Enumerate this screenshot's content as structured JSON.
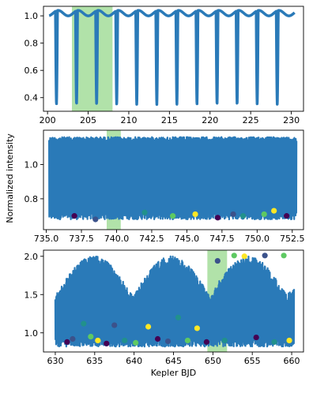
{
  "figure": {
    "shared_ylabel": "Normalized intensity",
    "colors": {
      "series": "#2a7ab8",
      "band": "#a8dfa0",
      "points": [
        "#440154",
        "#3b528b",
        "#21918c",
        "#5ec962",
        "#fde725"
      ]
    }
  },
  "chart_data": [
    {
      "type": "line",
      "xlabel": "",
      "ylabel": "",
      "xlim": [
        199.5,
        231.5
      ],
      "ylim": [
        0.3,
        1.07
      ],
      "xticks": [
        200,
        205,
        210,
        215,
        220,
        225,
        230
      ],
      "xtick_labels": [
        "200",
        "205",
        "210",
        "215",
        "220",
        "225",
        "230"
      ],
      "yticks": [
        0.4,
        0.6,
        0.8,
        1.0
      ],
      "ytick_labels": [
        "0.4",
        "0.6",
        "0.8",
        "1.0"
      ],
      "series": [
        {
          "x_range": [
            200.2,
            230.4
          ],
          "period": 2.47,
          "first_dip": 201.1,
          "max": 1.02,
          "min": 0.35
        }
      ],
      "highlight_band": {
        "x": [
          203.0,
          208.0
        ]
      },
      "grid": false
    },
    {
      "type": "line",
      "xlabel": "",
      "ylabel": "",
      "xlim": [
        734.8,
        753.3
      ],
      "ylim": [
        0.62,
        1.2
      ],
      "xticks": [
        735.0,
        737.5,
        740.0,
        742.5,
        745.0,
        747.5,
        750.0,
        752.5
      ],
      "xtick_labels": [
        "735.0",
        "737.5",
        "740.0",
        "742.5",
        "745.0",
        "747.5",
        "750.0",
        "752.5"
      ],
      "yticks": [
        0.8,
        1.0
      ],
      "ytick_labels": [
        "0.8",
        "1.0"
      ],
      "series": [
        {
          "x_range": [
            735.2,
            752.8
          ],
          "period": 0.088,
          "max": 1.16,
          "min": 0.68
        }
      ],
      "highlight_band": {
        "x": [
          739.3,
          740.3
        ]
      },
      "points": [
        {
          "x": 737.0,
          "y": 0.7
        },
        {
          "x": 738.5,
          "y": 0.68
        },
        {
          "x": 742.0,
          "y": 0.72
        },
        {
          "x": 744.0,
          "y": 0.7
        },
        {
          "x": 745.6,
          "y": 0.71
        },
        {
          "x": 747.2,
          "y": 0.69
        },
        {
          "x": 748.3,
          "y": 0.71
        },
        {
          "x": 749.0,
          "y": 0.7
        },
        {
          "x": 750.5,
          "y": 0.71
        },
        {
          "x": 751.2,
          "y": 0.73
        },
        {
          "x": 752.1,
          "y": 0.7
        }
      ],
      "grid": false
    },
    {
      "type": "line",
      "xlabel": "Kepler BJD",
      "ylabel": "",
      "xlim": [
        628.5,
        661.5
      ],
      "ylim": [
        0.75,
        2.08
      ],
      "xticks": [
        630,
        635,
        640,
        645,
        650,
        655,
        660
      ],
      "xtick_labels": [
        "630",
        "635",
        "640",
        "645",
        "650",
        "655",
        "660"
      ],
      "yticks": [
        1.0,
        1.5,
        2.0
      ],
      "ytick_labels": [
        "1.0",
        "1.5",
        "2.0"
      ],
      "series": [
        {
          "x_range": [
            630.0,
            660.3
          ],
          "period": 0.57,
          "max": 2.0,
          "min": 0.82
        }
      ],
      "highlight_band": {
        "x": [
          649.3,
          651.8
        ]
      },
      "points": [
        {
          "x": 631.5,
          "y": 0.88
        },
        {
          "x": 632.2,
          "y": 0.92
        },
        {
          "x": 633.6,
          "y": 1.12
        },
        {
          "x": 634.5,
          "y": 0.95
        },
        {
          "x": 635.4,
          "y": 0.9
        },
        {
          "x": 636.5,
          "y": 0.86
        },
        {
          "x": 637.5,
          "y": 1.1
        },
        {
          "x": 638.8,
          "y": 0.9
        },
        {
          "x": 640.2,
          "y": 0.87
        },
        {
          "x": 641.8,
          "y": 1.08
        },
        {
          "x": 643.0,
          "y": 0.92
        },
        {
          "x": 644.3,
          "y": 0.89
        },
        {
          "x": 645.6,
          "y": 1.2
        },
        {
          "x": 646.8,
          "y": 0.9
        },
        {
          "x": 648.0,
          "y": 1.06
        },
        {
          "x": 649.2,
          "y": 0.88
        },
        {
          "x": 650.6,
          "y": 1.94
        },
        {
          "x": 651.5,
          "y": 0.9
        },
        {
          "x": 652.7,
          "y": 2.01
        },
        {
          "x": 654.0,
          "y": 2.0
        },
        {
          "x": 655.5,
          "y": 0.94
        },
        {
          "x": 656.6,
          "y": 2.01
        },
        {
          "x": 657.8,
          "y": 0.88
        },
        {
          "x": 659.0,
          "y": 2.01
        },
        {
          "x": 659.7,
          "y": 0.9
        }
      ],
      "grid": false
    }
  ]
}
